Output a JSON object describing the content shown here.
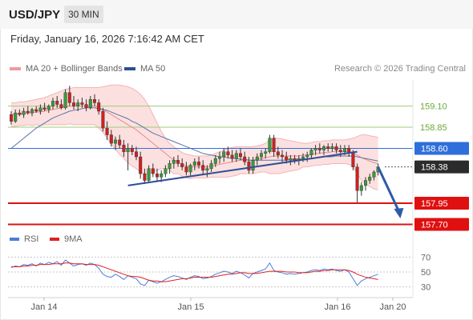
{
  "header": {
    "symbol": "USD/JPY",
    "interval": "30 MIN"
  },
  "datetime": "Friday, January 16, 2026 7:16:42 AM CET",
  "legend": {
    "bollinger": {
      "label": "MA 20 + Bollinger Bands",
      "color": "#f09a9a"
    },
    "ma50": {
      "label": "MA 50",
      "color": "#2c4f8f"
    }
  },
  "credit": "Research © 2026 Trading Central",
  "rsi_legend": {
    "rsi": {
      "label": "RSI",
      "color": "#4a7ed8"
    },
    "ma9": {
      "label": "9MA",
      "color": "#e02020"
    }
  },
  "chart_data": [
    {
      "type": "candlestick",
      "title": "USD/JPY 30 MIN",
      "x_ticks": [
        "Jan 14",
        "Jan 15",
        "Jan 16",
        "Jan 20"
      ],
      "ylim": [
        157.6,
        159.4
      ],
      "current_price": 158.38,
      "levels": [
        {
          "value": 159.1,
          "label": "159.10",
          "color": "#7fbf4d",
          "kind": "target"
        },
        {
          "value": 158.85,
          "label": "158.85",
          "color": "#7fbf4d",
          "kind": "target"
        },
        {
          "value": 158.6,
          "label": "158.60",
          "color": "#2f6fdc",
          "kind": "pivot"
        },
        {
          "value": 158.38,
          "label": "158.38",
          "color": "#333333",
          "kind": "last"
        },
        {
          "value": 157.95,
          "label": "157.95",
          "color": "#e01010",
          "kind": "support"
        },
        {
          "value": 157.7,
          "label": "157.70",
          "color": "#e01010",
          "kind": "support"
        }
      ],
      "colors": {
        "up": "#3a9a3a",
        "down": "#cc2222"
      },
      "candles": [
        [
          159.0,
          159.04,
          158.88,
          158.92
        ],
        [
          158.92,
          159.06,
          158.9,
          159.02
        ],
        [
          159.02,
          159.06,
          158.98,
          159.0
        ],
        [
          159.0,
          159.08,
          158.96,
          159.04
        ],
        [
          159.04,
          159.1,
          159.0,
          159.02
        ],
        [
          159.02,
          159.08,
          158.98,
          159.06
        ],
        [
          159.06,
          159.1,
          159.02,
          159.04
        ],
        [
          159.04,
          159.12,
          159.0,
          159.08
        ],
        [
          159.08,
          159.14,
          159.04,
          159.06
        ],
        [
          159.06,
          159.12,
          159.02,
          159.1
        ],
        [
          159.1,
          159.2,
          159.06,
          159.16
        ],
        [
          159.16,
          159.22,
          159.08,
          159.12
        ],
        [
          159.12,
          159.18,
          159.06,
          159.08
        ],
        [
          159.08,
          159.3,
          159.06,
          159.26
        ],
        [
          159.26,
          159.34,
          159.1,
          159.14
        ],
        [
          159.14,
          159.22,
          159.06,
          159.1
        ],
        [
          159.1,
          159.18,
          159.04,
          159.14
        ],
        [
          159.14,
          159.2,
          159.08,
          159.12
        ],
        [
          159.12,
          159.18,
          159.04,
          159.08
        ],
        [
          159.08,
          159.22,
          159.06,
          159.18
        ],
        [
          159.18,
          159.24,
          159.1,
          159.14
        ],
        [
          159.14,
          159.18,
          159.0,
          159.04
        ],
        [
          159.04,
          159.08,
          158.8,
          158.84
        ],
        [
          158.84,
          158.92,
          158.7,
          158.76
        ],
        [
          158.76,
          158.82,
          158.62,
          158.66
        ],
        [
          158.66,
          158.74,
          158.58,
          158.7
        ],
        [
          158.7,
          158.76,
          158.6,
          158.64
        ],
        [
          158.64,
          158.7,
          158.5,
          158.56
        ],
        [
          158.56,
          158.66,
          158.34,
          158.6
        ],
        [
          158.6,
          158.64,
          158.52,
          158.56
        ],
        [
          158.56,
          158.62,
          158.46,
          158.5
        ],
        [
          158.5,
          158.56,
          158.24,
          158.3
        ],
        [
          158.3,
          158.36,
          158.18,
          158.22
        ],
        [
          158.22,
          158.4,
          158.2,
          158.36
        ],
        [
          158.36,
          158.42,
          158.26,
          158.3
        ],
        [
          158.3,
          158.36,
          158.2,
          158.26
        ],
        [
          158.26,
          158.34,
          158.2,
          158.3
        ],
        [
          158.3,
          158.4,
          158.26,
          158.36
        ],
        [
          158.36,
          158.46,
          158.3,
          158.42
        ],
        [
          158.42,
          158.5,
          158.36,
          158.46
        ],
        [
          158.46,
          158.52,
          158.38,
          158.42
        ],
        [
          158.42,
          158.48,
          158.34,
          158.38
        ],
        [
          158.38,
          158.44,
          158.28,
          158.32
        ],
        [
          158.32,
          158.42,
          158.28,
          158.4
        ],
        [
          158.4,
          158.48,
          158.34,
          158.44
        ],
        [
          158.44,
          158.5,
          158.36,
          158.4
        ],
        [
          158.4,
          158.46,
          158.3,
          158.34
        ],
        [
          158.34,
          158.4,
          158.26,
          158.36
        ],
        [
          158.36,
          158.46,
          158.32,
          158.42
        ],
        [
          158.42,
          158.52,
          158.38,
          158.48
        ],
        [
          158.48,
          158.56,
          158.42,
          158.5
        ],
        [
          158.5,
          158.6,
          158.44,
          158.56
        ],
        [
          158.56,
          158.62,
          158.48,
          158.52
        ],
        [
          158.52,
          158.58,
          158.44,
          158.48
        ],
        [
          158.48,
          158.58,
          158.44,
          158.54
        ],
        [
          158.54,
          158.6,
          158.46,
          158.5
        ],
        [
          158.5,
          158.56,
          158.4,
          158.44
        ],
        [
          158.44,
          158.5,
          158.3,
          158.34
        ],
        [
          158.34,
          158.5,
          158.3,
          158.46
        ],
        [
          158.46,
          158.54,
          158.4,
          158.5
        ],
        [
          158.5,
          158.58,
          158.46,
          158.54
        ],
        [
          158.54,
          158.6,
          158.48,
          158.56
        ],
        [
          158.56,
          158.76,
          158.54,
          158.72
        ],
        [
          158.72,
          158.76,
          158.5,
          158.56
        ],
        [
          158.56,
          158.62,
          158.48,
          158.52
        ],
        [
          158.52,
          158.58,
          158.44,
          158.5
        ],
        [
          158.5,
          158.56,
          158.42,
          158.46
        ],
        [
          158.46,
          158.52,
          158.4,
          158.48
        ],
        [
          158.48,
          158.52,
          158.42,
          158.46
        ],
        [
          158.46,
          158.52,
          158.4,
          158.48
        ],
        [
          158.48,
          158.54,
          158.44,
          158.5
        ],
        [
          158.5,
          158.56,
          158.44,
          158.52
        ],
        [
          158.52,
          158.6,
          158.48,
          158.58
        ],
        [
          158.58,
          158.64,
          158.52,
          158.6
        ],
        [
          158.6,
          158.66,
          158.54,
          158.58
        ],
        [
          158.58,
          158.64,
          158.52,
          158.62
        ],
        [
          158.62,
          158.66,
          158.56,
          158.6
        ],
        [
          158.6,
          158.66,
          158.56,
          158.62
        ],
        [
          158.62,
          158.66,
          158.54,
          158.58
        ],
        [
          158.58,
          158.64,
          158.5,
          158.56
        ],
        [
          158.56,
          158.64,
          158.52,
          158.6
        ],
        [
          158.6,
          158.64,
          158.5,
          158.54
        ],
        [
          158.54,
          158.58,
          158.34,
          158.38
        ],
        [
          158.38,
          158.42,
          157.96,
          158.1
        ],
        [
          158.1,
          158.2,
          158.04,
          158.16
        ],
        [
          158.16,
          158.26,
          158.1,
          158.22
        ],
        [
          158.22,
          158.3,
          158.18,
          158.26
        ],
        [
          158.26,
          158.34,
          158.22,
          158.32
        ],
        [
          158.32,
          158.42,
          158.28,
          158.38
        ]
      ],
      "ma20": [
        159.0,
        159.0,
        159.01,
        159.01,
        159.02,
        159.02,
        159.03,
        159.03,
        159.04,
        159.05,
        159.06,
        159.07,
        159.08,
        159.09,
        159.1,
        159.1,
        159.1,
        159.1,
        159.1,
        159.1,
        159.1,
        159.08,
        159.06,
        159.03,
        159.0,
        158.97,
        158.94,
        158.91,
        158.88,
        158.85,
        158.82,
        158.78,
        158.74,
        158.7,
        158.66,
        158.62,
        158.58,
        158.54,
        158.5,
        158.46,
        158.44,
        158.41,
        158.39,
        158.38,
        158.38,
        158.38,
        158.38,
        158.38,
        158.39,
        158.4,
        158.41,
        158.42,
        158.43,
        158.44,
        158.45,
        158.46,
        158.46,
        158.46,
        158.46,
        158.47,
        158.48,
        158.49,
        158.5,
        158.51,
        158.51,
        158.51,
        158.51,
        158.51,
        158.51,
        158.51,
        158.52,
        158.52,
        158.53,
        158.54,
        158.54,
        158.55,
        158.55,
        158.56,
        158.56,
        158.56,
        158.56,
        158.56,
        158.55,
        158.52,
        158.49,
        158.47,
        158.45,
        158.43,
        158.42
      ],
      "bb_upper": [
        159.14,
        159.14,
        159.15,
        159.15,
        159.16,
        159.17,
        159.18,
        159.19,
        159.2,
        159.22,
        159.24,
        159.26,
        159.28,
        159.3,
        159.31,
        159.32,
        159.32,
        159.32,
        159.32,
        159.32,
        159.32,
        159.32,
        159.33,
        159.34,
        159.35,
        159.35,
        159.35,
        159.34,
        159.33,
        159.31,
        159.28,
        159.24,
        159.18,
        159.1,
        159.0,
        158.9,
        158.8,
        158.72,
        158.66,
        158.62,
        158.58,
        158.55,
        158.53,
        158.52,
        158.51,
        158.51,
        158.51,
        158.51,
        158.52,
        158.54,
        158.56,
        158.58,
        158.6,
        158.61,
        158.62,
        158.62,
        158.62,
        158.62,
        158.62,
        158.63,
        158.64,
        158.66,
        158.7,
        158.72,
        158.72,
        158.71,
        158.7,
        158.69,
        158.68,
        158.67,
        158.66,
        158.66,
        158.67,
        158.68,
        158.68,
        158.69,
        158.69,
        158.7,
        158.7,
        158.7,
        158.7,
        158.71,
        158.72,
        158.74,
        158.76,
        158.76,
        158.75,
        158.74,
        158.73
      ],
      "bb_lower": [
        158.86,
        158.86,
        158.87,
        158.87,
        158.88,
        158.87,
        158.88,
        158.87,
        158.88,
        158.88,
        158.88,
        158.88,
        158.88,
        158.88,
        158.89,
        158.88,
        158.88,
        158.88,
        158.88,
        158.88,
        158.88,
        158.84,
        158.79,
        158.72,
        158.65,
        158.59,
        158.53,
        158.48,
        158.43,
        158.39,
        158.36,
        158.32,
        158.3,
        158.3,
        158.32,
        158.34,
        158.36,
        158.36,
        158.34,
        158.3,
        158.3,
        158.27,
        158.25,
        158.24,
        158.25,
        158.25,
        158.25,
        158.25,
        158.26,
        158.26,
        158.26,
        158.26,
        158.26,
        158.27,
        158.28,
        158.3,
        158.3,
        158.3,
        158.3,
        158.31,
        158.32,
        158.32,
        158.3,
        158.3,
        158.3,
        158.31,
        158.32,
        158.33,
        158.34,
        158.35,
        158.38,
        158.38,
        158.39,
        158.4,
        158.4,
        158.41,
        158.41,
        158.42,
        158.42,
        158.42,
        158.42,
        158.41,
        158.38,
        158.3,
        158.22,
        158.18,
        158.15,
        158.12,
        158.11
      ],
      "ma50": [
        158.6,
        158.64,
        158.68,
        158.72,
        158.76,
        158.8,
        158.84,
        158.87,
        158.9,
        158.93,
        158.96,
        158.98,
        159.0,
        159.02,
        159.04,
        159.05,
        159.06,
        159.07,
        159.08,
        159.08,
        159.08,
        159.07,
        159.06,
        159.05,
        159.03,
        159.01,
        158.99,
        158.97,
        158.95,
        158.92,
        158.9,
        158.87,
        158.84,
        158.81,
        158.78,
        158.76,
        158.74,
        158.72,
        158.7,
        158.68,
        158.66,
        158.64,
        158.62,
        158.6,
        158.58,
        158.56,
        158.54,
        158.53,
        158.52,
        158.51,
        158.5,
        158.5,
        158.49,
        158.48,
        158.48,
        158.47,
        158.47,
        158.46,
        158.46,
        158.46,
        158.46,
        158.46,
        158.46,
        158.46,
        158.46,
        158.46,
        158.46,
        158.47,
        158.47,
        158.47,
        158.47,
        158.48,
        158.48,
        158.49,
        158.49,
        158.5,
        158.5,
        158.5,
        158.51,
        158.51,
        158.51,
        158.51,
        158.51,
        158.5,
        158.49,
        158.48,
        158.47,
        158.46,
        158.45
      ],
      "trendline": {
        "from": {
          "index": 28,
          "value": 158.16
        },
        "to": {
          "index": 83,
          "value": 158.56
        }
      },
      "forecast_arrow": {
        "from": {
          "index": 88,
          "value": 158.38
        },
        "to": {
          "index": 92,
          "value": 157.78
        }
      }
    },
    {
      "type": "line",
      "title": "RSI",
      "ylim": [
        20,
        80
      ],
      "y_ticks": [
        70,
        50,
        30
      ],
      "series": [
        {
          "name": "RSI",
          "color": "#4a7ed8",
          "values": [
            56,
            58,
            57,
            60,
            59,
            61,
            58,
            62,
            60,
            63,
            61,
            64,
            59,
            66,
            62,
            58,
            60,
            61,
            59,
            62,
            60,
            55,
            47,
            44,
            43,
            47,
            44,
            40,
            45,
            43,
            41,
            34,
            32,
            39,
            37,
            35,
            37,
            40,
            43,
            45,
            44,
            42,
            40,
            43,
            45,
            44,
            41,
            42,
            44,
            47,
            49,
            51,
            50,
            48,
            51,
            49,
            46,
            42,
            48,
            50,
            52,
            54,
            62,
            52,
            50,
            49,
            47,
            48,
            47,
            48,
            49,
            50,
            52,
            53,
            52,
            54,
            53,
            54,
            52,
            51,
            53,
            50,
            41,
            32,
            38,
            41,
            43,
            45,
            47
          ]
        },
        {
          "name": "9MA",
          "color": "#e02020",
          "values": [
            57,
            57,
            57,
            58,
            58,
            59,
            59,
            60,
            60,
            60,
            61,
            61,
            61,
            62,
            62,
            61,
            61,
            61,
            60,
            60,
            60,
            59,
            57,
            55,
            53,
            51,
            49,
            47,
            45,
            44,
            44,
            43,
            41,
            39,
            38,
            38,
            37,
            37,
            38,
            39,
            40,
            41,
            41,
            42,
            43,
            43,
            43,
            43,
            43,
            44,
            45,
            46,
            47,
            47,
            48,
            49,
            49,
            48,
            48,
            48,
            49,
            50,
            51,
            51,
            51,
            51,
            50,
            50,
            50,
            49,
            49,
            49,
            50,
            51,
            51,
            52,
            52,
            53,
            53,
            53,
            53,
            52,
            50,
            47,
            45,
            43,
            42,
            41,
            40
          ]
        }
      ]
    }
  ]
}
